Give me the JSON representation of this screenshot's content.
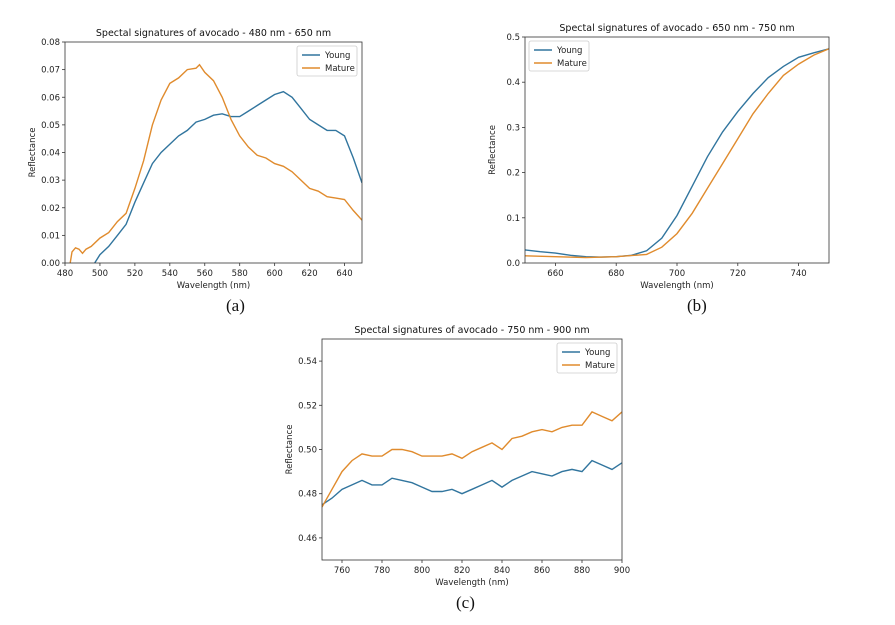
{
  "colors": {
    "young": "#31759e",
    "mature": "#e08b2d"
  },
  "chart_data": [
    {
      "type": "line",
      "title": "Spectal signatures of avocado -  480 nm - 650 nm",
      "xlabel": "Wavelength (nm)",
      "ylabel": "Reflectance",
      "caption": "(a)",
      "xlim": [
        480,
        650
      ],
      "ylim": [
        0,
        0.08
      ],
      "xticks": [
        480,
        500,
        520,
        540,
        560,
        580,
        600,
        620,
        640
      ],
      "yticks": [
        0.0,
        0.01,
        0.02,
        0.03,
        0.04,
        0.05,
        0.06,
        0.07,
        0.08
      ],
      "ytick_labels": [
        "0.00",
        "0.01",
        "0.02",
        "0.03",
        "0.04",
        "0.05",
        "0.06",
        "0.07",
        "0.08"
      ],
      "grid": false,
      "legend": "top-right",
      "series": [
        {
          "name": "Young",
          "color": "#31759e",
          "x": [
            497,
            500,
            505,
            510,
            515,
            520,
            525,
            530,
            535,
            540,
            545,
            550,
            555,
            560,
            565,
            570,
            575,
            580,
            585,
            590,
            595,
            600,
            605,
            610,
            615,
            620,
            625,
            630,
            635,
            640,
            645,
            650
          ],
          "y": [
            0,
            0.003,
            0.006,
            0.01,
            0.014,
            0.022,
            0.029,
            0.036,
            0.04,
            0.043,
            0.046,
            0.048,
            0.051,
            0.052,
            0.0535,
            0.054,
            0.053,
            0.053,
            0.055,
            0.057,
            0.059,
            0.061,
            0.062,
            0.06,
            0.056,
            0.052,
            0.05,
            0.048,
            0.048,
            0.046,
            0.038,
            0.029
          ]
        },
        {
          "name": "Mature",
          "color": "#e08b2d",
          "x": [
            483,
            484,
            486,
            488,
            490,
            492,
            495,
            500,
            505,
            510,
            515,
            520,
            525,
            530,
            535,
            540,
            545,
            550,
            555,
            557,
            560,
            565,
            570,
            575,
            580,
            585,
            590,
            595,
            600,
            605,
            610,
            615,
            620,
            625,
            630,
            635,
            640,
            645,
            650
          ],
          "y": [
            0,
            0.004,
            0.0055,
            0.005,
            0.0035,
            0.005,
            0.006,
            0.009,
            0.011,
            0.015,
            0.018,
            0.027,
            0.037,
            0.05,
            0.059,
            0.065,
            0.067,
            0.07,
            0.0705,
            0.0718,
            0.069,
            0.066,
            0.06,
            0.052,
            0.046,
            0.042,
            0.039,
            0.038,
            0.036,
            0.035,
            0.033,
            0.03,
            0.027,
            0.026,
            0.024,
            0.0235,
            0.023,
            0.019,
            0.0155
          ]
        }
      ]
    },
    {
      "type": "line",
      "title": "Spectal signatures of avocado - 650 nm - 750 nm",
      "xlabel": "Wavelength (nm)",
      "ylabel": "Reflectance",
      "caption": "(b)",
      "xlim": [
        650,
        750
      ],
      "ylim": [
        0,
        0.5
      ],
      "xticks": [
        660,
        680,
        700,
        720,
        740
      ],
      "yticks": [
        0.0,
        0.1,
        0.2,
        0.3,
        0.4,
        0.5
      ],
      "ytick_labels": [
        "0.0",
        "0.1",
        "0.2",
        "0.3",
        "0.4",
        "0.5"
      ],
      "grid": false,
      "legend": "top-left",
      "series": [
        {
          "name": "Young",
          "color": "#31759e",
          "x": [
            650,
            655,
            660,
            665,
            670,
            675,
            680,
            685,
            690,
            695,
            700,
            705,
            710,
            715,
            720,
            725,
            730,
            735,
            740,
            745,
            750
          ],
          "y": [
            0.029,
            0.025,
            0.022,
            0.017,
            0.014,
            0.013,
            0.014,
            0.017,
            0.027,
            0.055,
            0.105,
            0.17,
            0.235,
            0.29,
            0.335,
            0.375,
            0.41,
            0.435,
            0.455,
            0.465,
            0.474
          ]
        },
        {
          "name": "Mature",
          "color": "#e08b2d",
          "x": [
            650,
            660,
            670,
            680,
            690,
            695,
            700,
            705,
            710,
            715,
            720,
            725,
            730,
            735,
            740,
            745,
            750
          ],
          "y": [
            0.016,
            0.014,
            0.012,
            0.014,
            0.019,
            0.035,
            0.065,
            0.11,
            0.165,
            0.22,
            0.275,
            0.33,
            0.375,
            0.415,
            0.44,
            0.46,
            0.474
          ]
        }
      ]
    },
    {
      "type": "line",
      "title": "Spectal signatures of avocado - 750 nm - 900 nm",
      "xlabel": "Wavelength (nm)",
      "ylabel": "Reflectance",
      "caption": "(c)",
      "xlim": [
        750,
        900
      ],
      "ylim": [
        0.45,
        0.55
      ],
      "xticks": [
        760,
        780,
        800,
        820,
        840,
        860,
        880,
        900
      ],
      "yticks": [
        0.46,
        0.48,
        0.5,
        0.52,
        0.54
      ],
      "ytick_labels": [
        "0.46",
        "0.48",
        "0.50",
        "0.52",
        "0.54"
      ],
      "grid": false,
      "legend": "top-right",
      "series": [
        {
          "name": "Young",
          "color": "#31759e",
          "x": [
            750,
            755,
            760,
            765,
            770,
            775,
            780,
            785,
            790,
            795,
            800,
            805,
            810,
            815,
            820,
            825,
            830,
            835,
            840,
            845,
            850,
            855,
            860,
            865,
            870,
            875,
            880,
            885,
            890,
            895,
            900
          ],
          "y": [
            0.475,
            0.478,
            0.482,
            0.484,
            0.486,
            0.484,
            0.484,
            0.487,
            0.486,
            0.485,
            0.483,
            0.481,
            0.481,
            0.482,
            0.48,
            0.482,
            0.484,
            0.486,
            0.483,
            0.486,
            0.488,
            0.49,
            0.489,
            0.488,
            0.49,
            0.491,
            0.49,
            0.495,
            0.493,
            0.491,
            0.494
          ]
        },
        {
          "name": "Mature",
          "color": "#e08b2d",
          "x": [
            750,
            755,
            760,
            765,
            770,
            775,
            780,
            785,
            790,
            795,
            800,
            805,
            810,
            815,
            820,
            825,
            830,
            835,
            840,
            845,
            850,
            855,
            860,
            865,
            870,
            875,
            880,
            885,
            890,
            895,
            900
          ],
          "y": [
            0.474,
            0.482,
            0.49,
            0.495,
            0.498,
            0.497,
            0.497,
            0.5,
            0.5,
            0.499,
            0.497,
            0.497,
            0.497,
            0.498,
            0.496,
            0.499,
            0.501,
            0.503,
            0.5,
            0.505,
            0.506,
            0.508,
            0.509,
            0.508,
            0.51,
            0.511,
            0.511,
            0.517,
            0.515,
            0.513,
            0.517
          ]
        }
      ]
    }
  ]
}
